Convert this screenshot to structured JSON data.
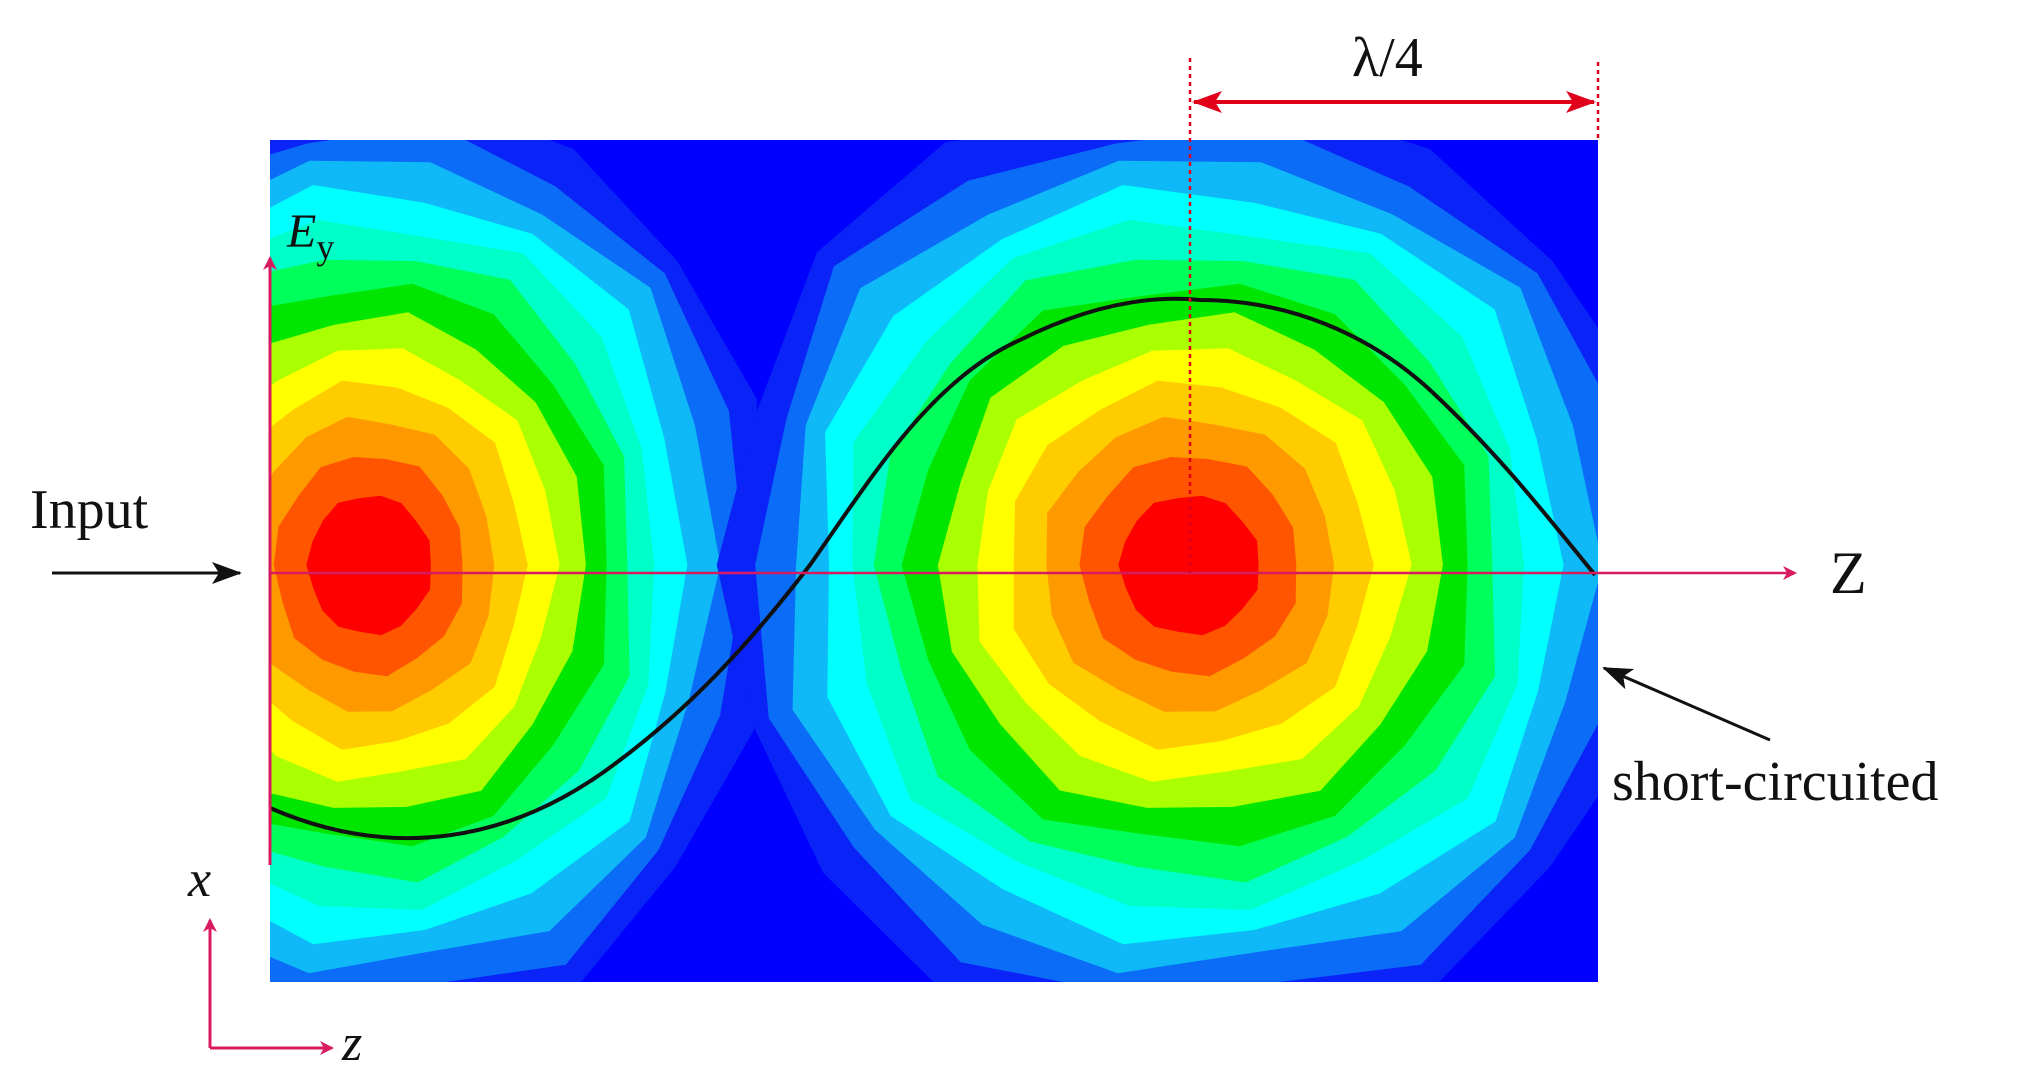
{
  "figure": {
    "ey_label": {
      "main": "E",
      "sub": "y"
    },
    "z_axis_label": "Z",
    "x_coord_label": "x",
    "z_coord_label": "z",
    "input_label": "Input",
    "short_label": "short-circuited",
    "lambda_label": "λ/4"
  },
  "colors": {
    "field_background": "#0000ff",
    "contour_levels": [
      "#0a24f7",
      "#0a6cf7",
      "#0fb9f7",
      "#00ffff",
      "#00ffc8",
      "#00ff5a",
      "#00e600",
      "#aaff00",
      "#ffff00",
      "#ffcc00",
      "#ff9900",
      "#ff5500",
      "#ff0000"
    ],
    "axis_arrow": "#d81b60",
    "dimension_arrow": "#e0001a",
    "curve": "#111111"
  }
}
